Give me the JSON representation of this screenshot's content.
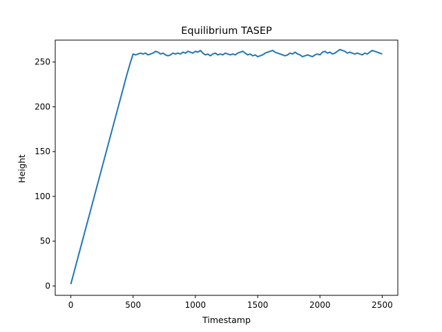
{
  "chart_data": {
    "type": "line",
    "title": "Equilibrium TASEP",
    "xlabel": "Timestamp",
    "ylabel": "Height",
    "xlim": [
      -125,
      2625
    ],
    "ylim": [
      -10.5,
      274.5
    ],
    "xticks": [
      0,
      500,
      1000,
      1500,
      2000,
      2500
    ],
    "yticks": [
      0,
      50,
      100,
      150,
      200,
      250
    ],
    "grid": false,
    "legend": "none",
    "series": [
      {
        "color": "#1f77b4",
        "x": [
          0,
          25,
          50,
          75,
          100,
          125,
          150,
          175,
          200,
          225,
          250,
          275,
          300,
          325,
          350,
          375,
          400,
          425,
          450,
          475,
          500,
          520,
          540,
          560,
          580,
          600,
          620,
          640,
          660,
          680,
          700,
          720,
          740,
          760,
          780,
          800,
          820,
          840,
          860,
          880,
          900,
          920,
          940,
          960,
          980,
          1000,
          1020,
          1040,
          1060,
          1080,
          1100,
          1120,
          1140,
          1160,
          1180,
          1200,
          1220,
          1240,
          1260,
          1280,
          1300,
          1320,
          1340,
          1360,
          1380,
          1400,
          1420,
          1440,
          1460,
          1480,
          1500,
          1520,
          1540,
          1560,
          1580,
          1600,
          1620,
          1640,
          1660,
          1680,
          1700,
          1720,
          1740,
          1760,
          1780,
          1800,
          1820,
          1840,
          1860,
          1880,
          1900,
          1920,
          1940,
          1960,
          1980,
          2000,
          2020,
          2040,
          2060,
          2080,
          2100,
          2120,
          2140,
          2160,
          2180,
          2200,
          2220,
          2240,
          2260,
          2280,
          2300,
          2320,
          2340,
          2360,
          2380,
          2400,
          2420,
          2440,
          2460,
          2480,
          2500
        ],
        "y": [
          2,
          15,
          28,
          41,
          54,
          67,
          80,
          93,
          106,
          119,
          132,
          145,
          158,
          171,
          184,
          197,
          210,
          223,
          236,
          248,
          259,
          258,
          259,
          260,
          259,
          260,
          258,
          259,
          260,
          262,
          261,
          259,
          260,
          258,
          257,
          258,
          260,
          259,
          260,
          259,
          261,
          260,
          262,
          261,
          260,
          262,
          261,
          263,
          260,
          258,
          259,
          257,
          259,
          260,
          258,
          259,
          258,
          260,
          259,
          258,
          259,
          258,
          260,
          261,
          262,
          260,
          258,
          259,
          257,
          258,
          256,
          257,
          258,
          260,
          261,
          262,
          263,
          261,
          260,
          259,
          258,
          257,
          258,
          260,
          259,
          261,
          259,
          258,
          256,
          257,
          258,
          257,
          256,
          258,
          259,
          258,
          261,
          262,
          260,
          261,
          259,
          260,
          262,
          264,
          263,
          262,
          260,
          261,
          260,
          259,
          260,
          259,
          258,
          260,
          259,
          261,
          263,
          262,
          261,
          260,
          259
        ]
      }
    ]
  }
}
